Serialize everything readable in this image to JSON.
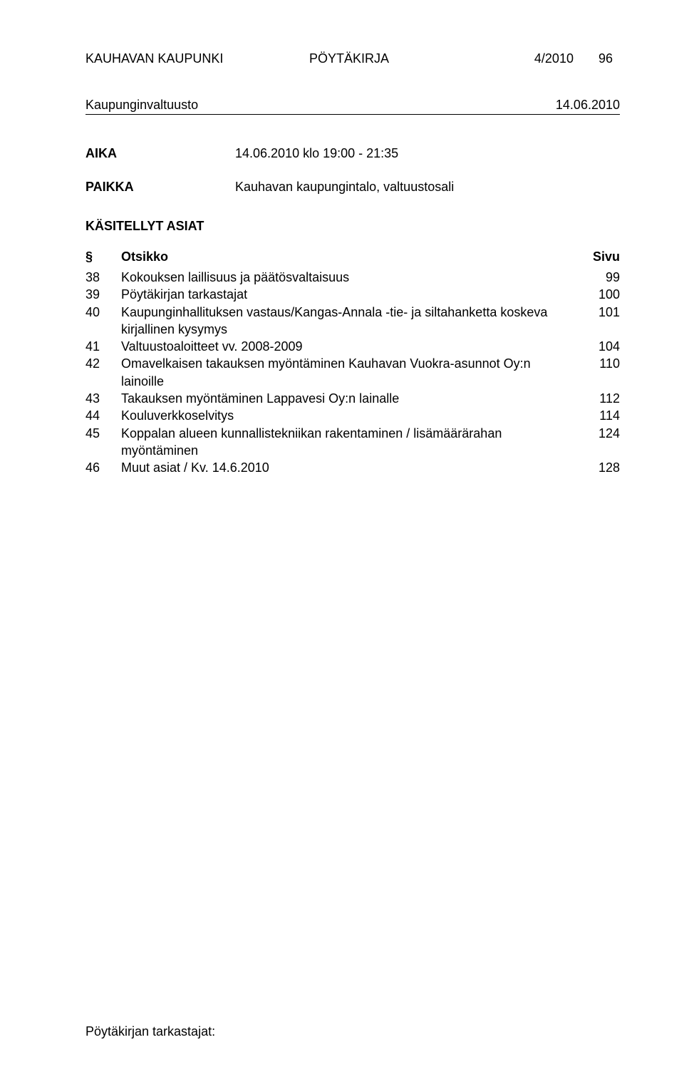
{
  "colors": {
    "background": "#ffffff",
    "text": "#000000",
    "rule": "#000000"
  },
  "typography": {
    "base_font_family": "Arial",
    "base_font_size_pt": 13,
    "header_font_size_pt": 13,
    "line_height": 1.35
  },
  "header": {
    "org": "KAUHAVAN KAUPUNKI",
    "doctype": "PÖYTÄKIRJA",
    "docnum": "4/2010",
    "pagenum": "96"
  },
  "subheader": {
    "body": "Kaupunginvaltuusto",
    "date": "14.06.2010"
  },
  "meeting": {
    "aika_label": "AIKA",
    "aika_value": "14.06.2010 klo 19:00 - 21:35",
    "paikka_label": "PAIKKA",
    "paikka_value": "Kauhavan kaupungintalo, valtuustosali"
  },
  "toc": {
    "heading": "KÄSITELLYT ASIAT",
    "col_section": "§",
    "col_title": "Otsikko",
    "col_page": "Sivu",
    "items": [
      {
        "section": "38",
        "title": "Kokouksen laillisuus ja päätösvaltaisuus",
        "page": "99"
      },
      {
        "section": "39",
        "title": "Pöytäkirjan tarkastajat",
        "page": "100"
      },
      {
        "section": "40",
        "title": "Kaupunginhallituksen vastaus/Kangas-Annala -tie- ja siltahanketta koskeva kirjallinen kysymys",
        "page": "101"
      },
      {
        "section": "41",
        "title": "Valtuustoaloitteet vv. 2008-2009",
        "page": "104"
      },
      {
        "section": "42",
        "title": "Omavelkaisen takauksen myöntäminen Kauhavan Vuokra-asunnot Oy:n lainoille",
        "page": "110"
      },
      {
        "section": "43",
        "title": "Takauksen myöntäminen Lappavesi Oy:n lainalle",
        "page": "112"
      },
      {
        "section": "44",
        "title": "Kouluverkkoselvitys",
        "page": "114"
      },
      {
        "section": "45",
        "title": "Koppalan alueen kunnallistekniikan rakentaminen / lisämäärärahan myöntäminen",
        "page": "124"
      },
      {
        "section": "46",
        "title": "Muut asiat / Kv. 14.6.2010",
        "page": "128"
      }
    ]
  },
  "footer": {
    "text": "Pöytäkirjan tarkastajat:"
  }
}
